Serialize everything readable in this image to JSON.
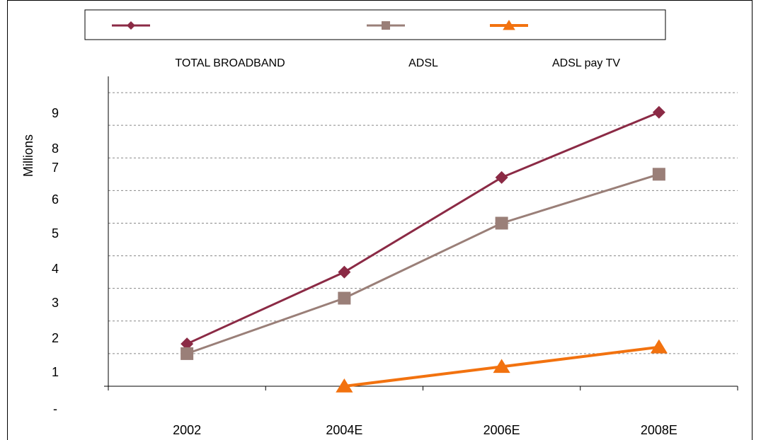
{
  "chart_data": {
    "type": "line",
    "categories": [
      "2002",
      "2004E",
      "2006E",
      "2008E"
    ],
    "ylabel": "Millions",
    "y_tick_labels": [
      "-",
      "1",
      "2",
      "3",
      "4",
      "5",
      "6",
      "7",
      "8",
      "9"
    ],
    "ylim": [
      0,
      9.5
    ],
    "grid": true,
    "legend_placement": "top",
    "series": [
      {
        "name": "TOTAL BROADBAND",
        "color": "#8B2A45",
        "marker": "diamond",
        "values": [
          1.3,
          3.5,
          6.4,
          8.4
        ]
      },
      {
        "name": "ADSL",
        "color": "#9A7F78",
        "marker": "square",
        "values": [
          1.0,
          2.7,
          5.0,
          6.5
        ]
      },
      {
        "name": "ADSL pay TV",
        "color": "#F2720F",
        "marker": "triangle",
        "values": [
          null,
          0.0,
          0.6,
          1.2
        ]
      }
    ]
  }
}
